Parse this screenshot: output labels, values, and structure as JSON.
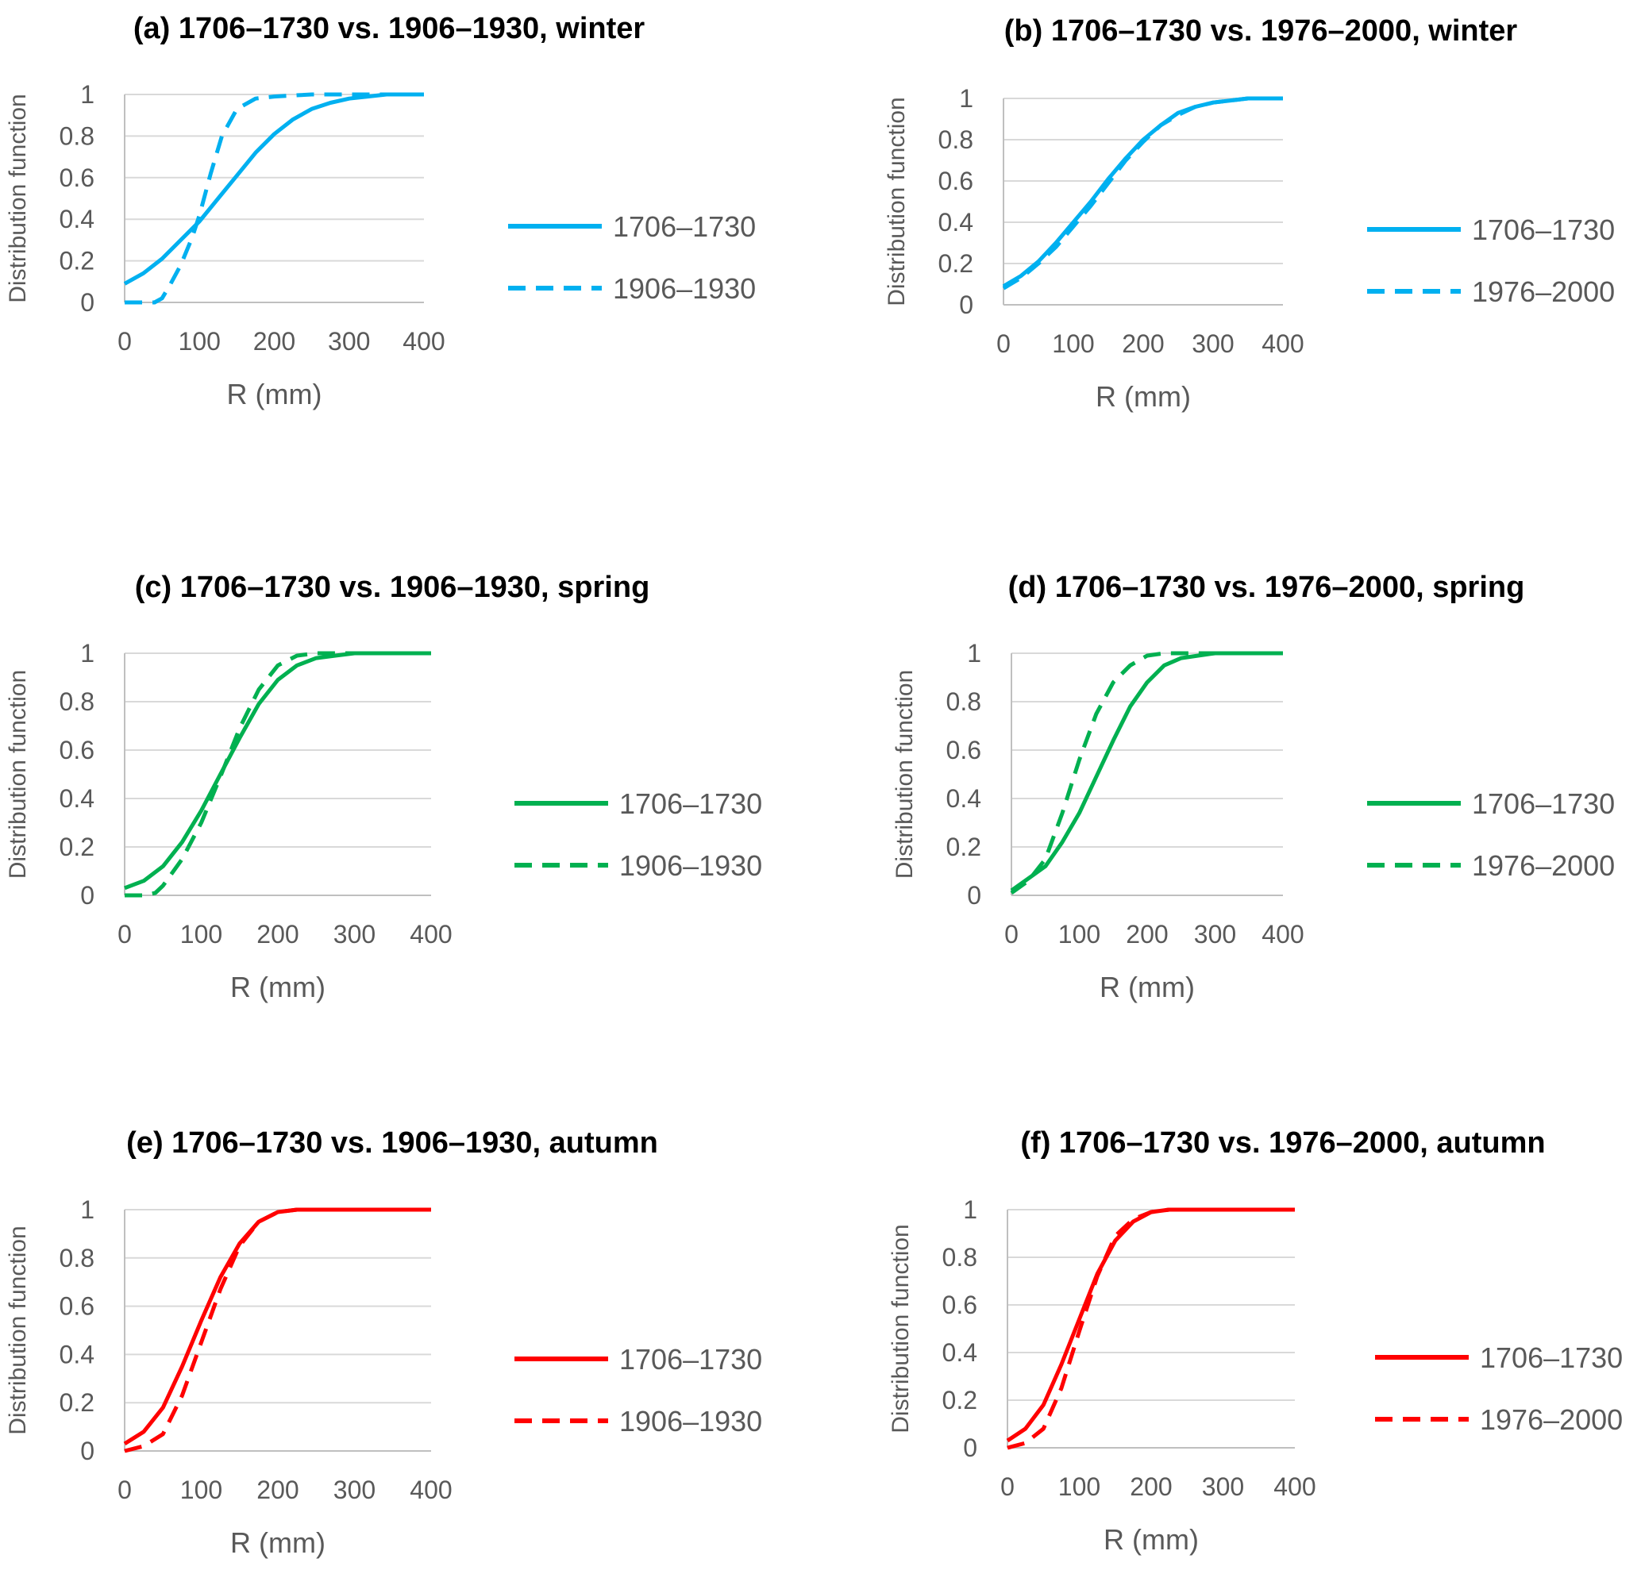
{
  "colors": {
    "winter": "#00b0f0",
    "spring": "#00b050",
    "autumn": "#ff0000",
    "grid": "#d9d9d9",
    "text": "#595959"
  },
  "chart_data": [
    {
      "type": "line",
      "title": "(a) 1706–1730 vs. 1906–1930, winter",
      "xlabel": "R (mm)",
      "ylabel": "Distribution function",
      "xlim": [
        0,
        400
      ],
      "ylim": [
        0,
        1
      ],
      "xticks": [
        "0",
        "100",
        "200",
        "300",
        "400"
      ],
      "yticks": [
        "0",
        "0.2",
        "0.4",
        "0.6",
        "0.8",
        "1"
      ],
      "grid": true,
      "legend": "right",
      "series": [
        {
          "name": "1706–1730",
          "style": "solid",
          "color": "#00b0f0",
          "x": [
            0,
            25,
            50,
            75,
            100,
            125,
            150,
            175,
            200,
            225,
            250,
            275,
            300,
            325,
            350,
            375,
            400
          ],
          "y": [
            0.09,
            0.14,
            0.21,
            0.3,
            0.39,
            0.5,
            0.61,
            0.72,
            0.81,
            0.88,
            0.93,
            0.96,
            0.98,
            0.99,
            1.0,
            1.0,
            1.0
          ]
        },
        {
          "name": "1906–1930",
          "style": "dashed",
          "color": "#00b0f0",
          "x": [
            0,
            15,
            25,
            40,
            50,
            60,
            75,
            90,
            100,
            115,
            130,
            150,
            175,
            200,
            250,
            300,
            400
          ],
          "y": [
            0.0,
            0.0,
            0.0,
            0.0,
            0.02,
            0.08,
            0.18,
            0.31,
            0.42,
            0.62,
            0.8,
            0.93,
            0.98,
            0.99,
            1.0,
            1.0,
            1.0
          ]
        }
      ]
    },
    {
      "type": "line",
      "title": "(b) 1706–1730 vs. 1976–2000, winter",
      "xlabel": "R (mm)",
      "ylabel": "Distribution function",
      "xlim": [
        0,
        400
      ],
      "ylim": [
        0,
        1
      ],
      "xticks": [
        "0",
        "100",
        "200",
        "300",
        "400"
      ],
      "yticks": [
        "0",
        "0.2",
        "0.4",
        "0.6",
        "0.8",
        "1"
      ],
      "grid": true,
      "legend": "right",
      "series": [
        {
          "name": "1706–1730",
          "style": "solid",
          "color": "#00b0f0",
          "x": [
            0,
            25,
            50,
            75,
            100,
            125,
            150,
            175,
            200,
            225,
            250,
            275,
            300,
            325,
            350,
            375,
            400
          ],
          "y": [
            0.09,
            0.14,
            0.21,
            0.3,
            0.4,
            0.5,
            0.61,
            0.71,
            0.8,
            0.87,
            0.93,
            0.96,
            0.98,
            0.99,
            1.0,
            1.0,
            1.0
          ]
        },
        {
          "name": "1976–2000",
          "style": "dashed",
          "color": "#00b0f0",
          "x": [
            0,
            25,
            50,
            75,
            100,
            125,
            150,
            175,
            200,
            225,
            250,
            275,
            300,
            325,
            350,
            375,
            400
          ],
          "y": [
            0.08,
            0.13,
            0.2,
            0.28,
            0.38,
            0.48,
            0.59,
            0.7,
            0.79,
            0.87,
            0.92,
            0.96,
            0.98,
            0.99,
            1.0,
            1.0,
            1.0
          ]
        }
      ]
    },
    {
      "type": "line",
      "title": "(c) 1706–1730 vs. 1906–1930, spring",
      "xlabel": "R (mm)",
      "ylabel": "Distribution function",
      "xlim": [
        0,
        400
      ],
      "ylim": [
        0,
        1
      ],
      "xticks": [
        "0",
        "100",
        "200",
        "300",
        "400"
      ],
      "yticks": [
        "0",
        "0.2",
        "0.4",
        "0.6",
        "0.8",
        "1"
      ],
      "grid": true,
      "legend": "right",
      "series": [
        {
          "name": "1706–1730",
          "style": "solid",
          "color": "#00b050",
          "x": [
            0,
            25,
            50,
            75,
            100,
            125,
            150,
            175,
            200,
            225,
            250,
            275,
            300,
            350,
            400
          ],
          "y": [
            0.03,
            0.06,
            0.12,
            0.22,
            0.35,
            0.5,
            0.65,
            0.79,
            0.89,
            0.95,
            0.98,
            0.99,
            1.0,
            1.0,
            1.0
          ]
        },
        {
          "name": "1906–1930",
          "style": "dashed",
          "color": "#00b050",
          "x": [
            0,
            25,
            40,
            50,
            75,
            100,
            125,
            150,
            175,
            200,
            225,
            250,
            275,
            300,
            400
          ],
          "y": [
            0.0,
            0.0,
            0.01,
            0.04,
            0.15,
            0.3,
            0.49,
            0.69,
            0.85,
            0.95,
            0.99,
            1.0,
            1.0,
            1.0,
            1.0
          ]
        }
      ]
    },
    {
      "type": "line",
      "title": "(d) 1706–1730 vs. 1976–2000, spring",
      "xlabel": "R (mm)",
      "ylabel": "Distribution function",
      "xlim": [
        0,
        400
      ],
      "ylim": [
        0,
        1
      ],
      "xticks": [
        "0",
        "100",
        "200",
        "300",
        "400"
      ],
      "yticks": [
        "0",
        "0.2",
        "0.4",
        "0.6",
        "0.8",
        "1"
      ],
      "grid": true,
      "legend": "right",
      "series": [
        {
          "name": "1706–1730",
          "style": "solid",
          "color": "#00b050",
          "x": [
            0,
            25,
            50,
            75,
            100,
            125,
            150,
            175,
            200,
            225,
            250,
            275,
            300,
            350,
            400
          ],
          "y": [
            0.02,
            0.07,
            0.12,
            0.22,
            0.34,
            0.49,
            0.64,
            0.78,
            0.88,
            0.95,
            0.98,
            0.99,
            1.0,
            1.0,
            1.0
          ]
        },
        {
          "name": "1976–2000",
          "style": "dashed",
          "color": "#00b050",
          "x": [
            0,
            25,
            50,
            75,
            100,
            125,
            150,
            175,
            200,
            225,
            250,
            300,
            400
          ],
          "y": [
            0.01,
            0.06,
            0.15,
            0.34,
            0.56,
            0.75,
            0.88,
            0.95,
            0.99,
            1.0,
            1.0,
            1.0,
            1.0
          ]
        }
      ]
    },
    {
      "type": "line",
      "title": "(e) 1706–1730 vs. 1906–1930, autumn",
      "xlabel": "R (mm)",
      "ylabel": "Distribution function",
      "xlim": [
        0,
        400
      ],
      "ylim": [
        0,
        1
      ],
      "xticks": [
        "0",
        "100",
        "200",
        "300",
        "400"
      ],
      "yticks": [
        "0",
        "0.2",
        "0.4",
        "0.6",
        "0.8",
        "1"
      ],
      "grid": true,
      "legend": "right",
      "series": [
        {
          "name": "1706–1730",
          "style": "solid",
          "color": "#ff0000",
          "x": [
            0,
            25,
            50,
            75,
            100,
            125,
            150,
            175,
            200,
            225,
            250,
            300,
            400
          ],
          "y": [
            0.03,
            0.08,
            0.18,
            0.35,
            0.54,
            0.72,
            0.86,
            0.95,
            0.99,
            1.0,
            1.0,
            1.0,
            1.0
          ]
        },
        {
          "name": "1906–1930",
          "style": "dashed",
          "color": "#ff0000",
          "x": [
            0,
            25,
            50,
            75,
            100,
            125,
            150,
            175,
            200,
            225,
            250,
            300,
            400
          ],
          "y": [
            0.0,
            0.02,
            0.07,
            0.23,
            0.45,
            0.67,
            0.85,
            0.95,
            0.99,
            1.0,
            1.0,
            1.0,
            1.0
          ]
        }
      ]
    },
    {
      "type": "line",
      "title": "(f) 1706–1730 vs. 1976–2000, autumn",
      "xlabel": "R (mm)",
      "ylabel": "Distribution function",
      "xlim": [
        0,
        400
      ],
      "ylim": [
        0,
        1
      ],
      "xticks": [
        "0",
        "100",
        "200",
        "300",
        "400"
      ],
      "yticks": [
        "0",
        "0.2",
        "0.4",
        "0.6",
        "0.8",
        "1"
      ],
      "grid": true,
      "legend": "right",
      "series": [
        {
          "name": "1706–1730",
          "style": "solid",
          "color": "#ff0000",
          "x": [
            0,
            25,
            50,
            75,
            100,
            125,
            150,
            175,
            200,
            225,
            250,
            300,
            400
          ],
          "y": [
            0.03,
            0.08,
            0.18,
            0.35,
            0.54,
            0.73,
            0.87,
            0.95,
            0.99,
            1.0,
            1.0,
            1.0,
            1.0
          ]
        },
        {
          "name": "1976–2000",
          "style": "dashed",
          "color": "#ff0000",
          "x": [
            0,
            25,
            50,
            75,
            100,
            125,
            150,
            175,
            200,
            225,
            250,
            300,
            400
          ],
          "y": [
            0.0,
            0.02,
            0.08,
            0.25,
            0.49,
            0.72,
            0.89,
            0.96,
            0.99,
            1.0,
            1.0,
            1.0,
            1.0
          ]
        }
      ]
    }
  ]
}
